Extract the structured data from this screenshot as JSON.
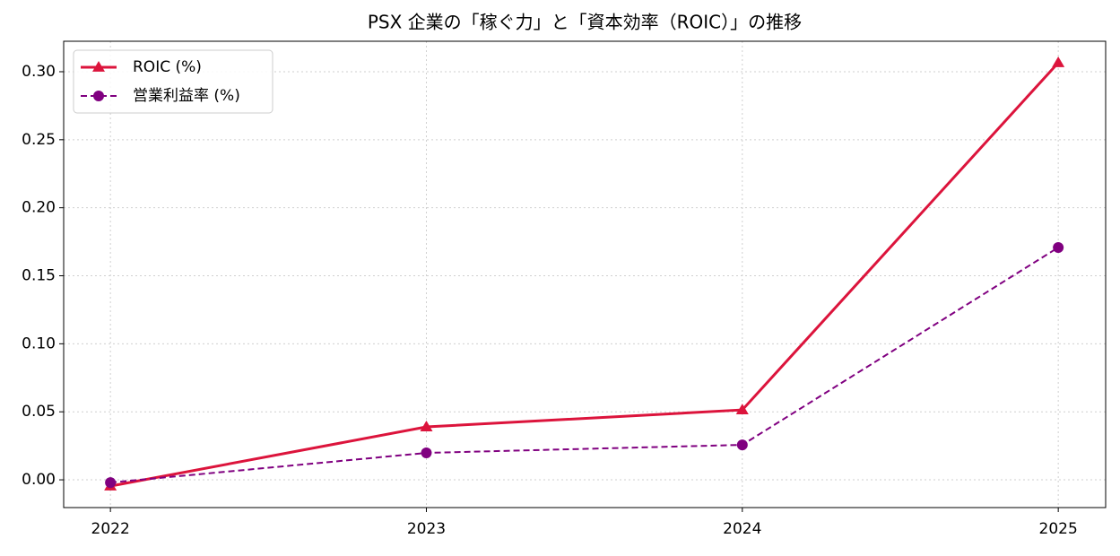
{
  "chart_data": {
    "type": "line",
    "title": "PSX 企業の「稼ぐ力」と「資本効率（ROIC）」の推移",
    "x": [
      2022,
      2023,
      2024,
      2025
    ],
    "series": [
      {
        "name": "ROIC (%)",
        "color": "#dc143c",
        "linestyle": "solid",
        "marker": "triangle",
        "values": [
          -0.0046,
          0.0389,
          0.0514,
          0.3066
        ]
      },
      {
        "name": "営業利益率 (%)",
        "color": "#800080",
        "linestyle": "dashed",
        "marker": "circle",
        "values": [
          -0.002,
          0.0198,
          0.0257,
          0.1708
        ]
      }
    ],
    "xlim": [
      2021.852,
      2025.15
    ],
    "xticks": [
      2022,
      2023,
      2024,
      2025
    ],
    "ylim": [
      -0.0204,
      0.3224
    ],
    "yticks": [
      {
        "value": 0,
        "label": "0.00"
      },
      {
        "value": 0.05,
        "label": "0.05"
      },
      {
        "value": 0.1,
        "label": "0.10"
      },
      {
        "value": 0.15,
        "label": "0.15"
      },
      {
        "value": 0.2,
        "label": "0.20"
      },
      {
        "value": 0.25,
        "label": "0.25"
      },
      {
        "value": 0.3,
        "label": "0.30"
      }
    ],
    "grid": true,
    "legend": "upper-left"
  }
}
